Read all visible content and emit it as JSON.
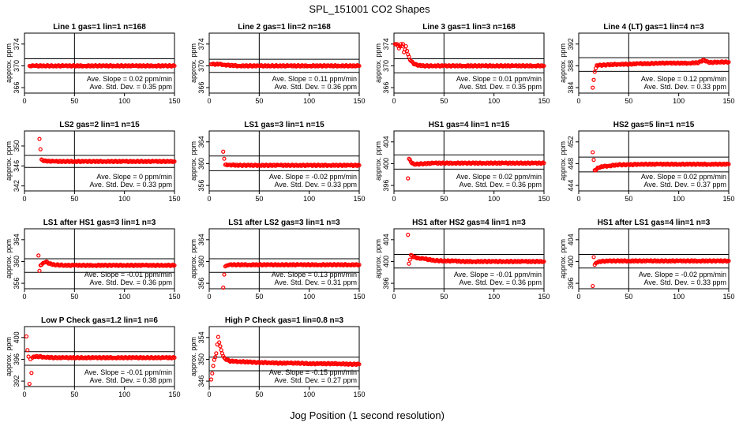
{
  "figure": {
    "title": "SPL_151001  CO2 Shapes",
    "xlabel": "Jog Position (1 second resolution)"
  },
  "chart_data": [
    {
      "type": "scatter",
      "title": "Line 1 gas=1 lin=1 n=168",
      "ylabel": "approx. ppm",
      "xlim": [
        0,
        150
      ],
      "ylim": [
        365,
        376
      ],
      "yticks": [
        366,
        370,
        374
      ],
      "xticks": [
        0,
        50,
        100,
        150
      ],
      "hlines": [
        371.3,
        368.7
      ],
      "vline": 50,
      "color": "#ff0000",
      "annotations": [
        "Ave. Slope = 0.02 ppm/min",
        "Ave. Std. Dev. = 0.35 ppm"
      ],
      "series": [
        {
          "x": [
            5,
            10,
            20,
            30,
            40,
            50,
            60,
            70,
            80,
            90,
            100,
            110,
            120,
            130,
            140,
            150
          ],
          "y": [
            370,
            370,
            370,
            370,
            370,
            370,
            370,
            370,
            370,
            370,
            370,
            370,
            370,
            370,
            370,
            370
          ]
        }
      ]
    },
    {
      "type": "scatter",
      "title": "Line 2 gas=1 lin=2 n=168",
      "ylabel": "approx. ppm",
      "xlim": [
        0,
        150
      ],
      "ylim": [
        365,
        376
      ],
      "yticks": [
        366,
        370,
        374
      ],
      "xticks": [
        0,
        50,
        100,
        150
      ],
      "hlines": [
        371.2,
        368.8
      ],
      "vline": 50,
      "color": "#ff0000",
      "annotations": [
        "Ave. Slope = 0.11 ppm/min",
        "Ave. Std. Dev. = 0.36 ppm"
      ],
      "series": [
        {
          "x": [
            2,
            5,
            10,
            15,
            20,
            30,
            40,
            50,
            60,
            70,
            80,
            90,
            100,
            110,
            120,
            130,
            140,
            150
          ],
          "y": [
            370.3,
            370.3,
            370.3,
            370.2,
            370.1,
            370,
            370,
            370,
            370,
            370,
            370,
            370,
            370,
            370,
            370,
            370,
            370,
            370
          ]
        }
      ]
    },
    {
      "type": "scatter",
      "title": "Line 3 gas=1 lin=3 n=168",
      "ylabel": "approx. ppm",
      "xlim": [
        0,
        150
      ],
      "ylim": [
        365,
        376
      ],
      "yticks": [
        366,
        370,
        374
      ],
      "xticks": [
        0,
        50,
        100,
        150
      ],
      "hlines": [
        371.3,
        368.7
      ],
      "vline": 50,
      "color": "#ff0000",
      "annotations": [
        "Ave. Slope = 0.01 ppm/min",
        "Ave. Std. Dev. = 0.35 ppm"
      ],
      "series": [
        {
          "x": [
            1,
            3,
            5,
            7,
            8,
            9,
            10,
            11,
            12,
            14,
            16,
            18,
            20,
            25,
            30,
            40,
            50,
            60,
            70,
            80,
            90,
            100,
            110,
            120,
            130,
            140,
            150
          ],
          "y": [
            374,
            374,
            373.2,
            374,
            373.6,
            374,
            372.5,
            373,
            373.6,
            372.1,
            371.1,
            370.8,
            370.3,
            370.1,
            370,
            370,
            370,
            370,
            370,
            370,
            370,
            370,
            370,
            370,
            370,
            370,
            370
          ]
        }
      ]
    },
    {
      "type": "scatter",
      "title": "Line 4 (LT) gas=1 lin=4 n=3",
      "ylabel": "approx. ppm",
      "xlim": [
        0,
        150
      ],
      "ylim": [
        383,
        394
      ],
      "yticks": [
        384,
        388,
        392
      ],
      "xticks": [
        0,
        50,
        100,
        150
      ],
      "hlines": [
        389.5,
        387
      ],
      "vline": 50,
      "color": "#ff0000",
      "annotations": [
        "Ave. Slope = 0.12 ppm/min",
        "Ave. Std. Dev. = 0.33 ppm"
      ],
      "series": [
        {
          "x": [
            14,
            16,
            18,
            20,
            30,
            40,
            50,
            60,
            70,
            80,
            90,
            100,
            110,
            120,
            125,
            130,
            140,
            150
          ],
          "y": [
            384,
            386.9,
            388.1,
            388.1,
            388.2,
            388.3,
            388.3,
            388.4,
            388.4,
            388.5,
            388.5,
            388.5,
            388.5,
            388.6,
            389.1,
            388.6,
            388.7,
            388.7
          ]
        }
      ]
    },
    {
      "type": "scatter",
      "title": "LS2 gas=2 lin=1 n=15",
      "ylabel": "approx. ppm",
      "xlim": [
        0,
        150
      ],
      "ylim": [
        341,
        353
      ],
      "yticks": [
        342,
        346,
        350
      ],
      "xticks": [
        0,
        50,
        100,
        150
      ],
      "hlines": [
        348.1,
        345.7
      ],
      "vline": 50,
      "color": "#ff0000",
      "annotations": [
        "Ave. Slope = 0 ppm/min",
        "Ave. Std. Dev. = 0.33 ppm"
      ],
      "series": [
        {
          "x": [
            15,
            17,
            20,
            30,
            40,
            50,
            60,
            70,
            80,
            90,
            100,
            110,
            120,
            130,
            140,
            150
          ],
          "y": [
            351.4,
            347.3,
            347,
            346.9,
            346.9,
            346.9,
            346.9,
            346.9,
            346.9,
            346.9,
            346.9,
            346.9,
            346.9,
            346.9,
            346.9,
            346.9
          ]
        }
      ]
    },
    {
      "type": "scatter",
      "title": "LS1 gas=3 lin=1 n=15",
      "ylabel": "approx. ppm",
      "xlim": [
        0,
        150
      ],
      "ylim": [
        355,
        366
      ],
      "yticks": [
        356,
        360,
        364
      ],
      "xticks": [
        0,
        50,
        100,
        150
      ],
      "hlines": [
        361.4,
        358.7
      ],
      "vline": 50,
      "color": "#ff0000",
      "annotations": [
        "Ave. Slope = -0.02 ppm/min",
        "Ave. Std. Dev. = 0.33 ppm"
      ],
      "series": [
        {
          "x": [
            14,
            16,
            20,
            30,
            40,
            50,
            60,
            70,
            80,
            90,
            100,
            110,
            120,
            130,
            140,
            150
          ],
          "y": [
            362.2,
            359.8,
            359.8,
            359.7,
            359.7,
            359.7,
            359.7,
            359.7,
            359.7,
            359.7,
            359.7,
            359.7,
            359.7,
            359.7,
            359.7,
            359.7
          ]
        }
      ]
    },
    {
      "type": "scatter",
      "title": "HS1 gas=4 lin=1 n=15",
      "ylabel": "approx. ppm",
      "xlim": [
        0,
        150
      ],
      "ylim": [
        395,
        406
      ],
      "yticks": [
        396,
        400,
        404
      ],
      "xticks": [
        0,
        50,
        100,
        150
      ],
      "hlines": [
        401.6,
        399
      ],
      "vline": 50,
      "color": "#ff0000",
      "annotations": [
        "Ave. Slope = 0.02 ppm/min",
        "Ave. Std. Dev. = 0.36 ppm"
      ],
      "series": [
        {
          "x": [
            14,
            15,
            17,
            20,
            30,
            40,
            50,
            60,
            70,
            80,
            90,
            100,
            110,
            120,
            130,
            140,
            150
          ],
          "y": [
            397.3,
            400.9,
            400.3,
            399.9,
            400,
            400.1,
            400.1,
            400.1,
            400.1,
            400.1,
            400.1,
            400.1,
            400.1,
            400.1,
            400.1,
            400.1,
            400.1
          ]
        }
      ]
    },
    {
      "type": "scatter",
      "title": "HS2 gas=5 lin=1 n=15",
      "ylabel": "approx. ppm",
      "xlim": [
        0,
        150
      ],
      "ylim": [
        443,
        454
      ],
      "yticks": [
        444,
        448,
        452
      ],
      "xticks": [
        0,
        50,
        100,
        150
      ],
      "hlines": [
        449.2,
        446.5
      ],
      "vline": 50,
      "color": "#ff0000",
      "annotations": [
        "Ave. Slope = 0.02 ppm/min",
        "Ave. Std. Dev. = 0.37 ppm"
      ],
      "series": [
        {
          "x": [
            14,
            15,
            16,
            18,
            20,
            25,
            30,
            40,
            50,
            60,
            70,
            80,
            90,
            100,
            110,
            120,
            130,
            140,
            150
          ],
          "y": [
            450.1,
            448.7,
            446.8,
            447,
            447.3,
            447.5,
            447.6,
            447.8,
            447.8,
            447.9,
            447.9,
            447.9,
            447.9,
            447.9,
            447.9,
            447.9,
            447.9,
            447.9,
            447.9
          ]
        }
      ]
    },
    {
      "type": "scatter",
      "title": "LS1 after HS1 gas=3 lin=1 n=3",
      "ylabel": "approx. ppm",
      "xlim": [
        0,
        150
      ],
      "ylim": [
        355,
        366
      ],
      "yticks": [
        356,
        360,
        364
      ],
      "xticks": [
        0,
        50,
        100,
        150
      ],
      "hlines": [
        360.5,
        358
      ],
      "vline": 50,
      "color": "#ff0000",
      "annotations": [
        "Ave. Slope = -0.01 ppm/min",
        "Ave. Std. Dev. = 0.36 ppm"
      ],
      "series": [
        {
          "x": [
            14,
            15,
            16,
            18,
            20,
            22,
            25,
            30,
            40,
            50,
            60,
            70,
            80,
            90,
            100,
            110,
            120,
            130,
            140,
            150
          ],
          "y": [
            361.1,
            358.3,
            359.3,
            359.6,
            359.8,
            360,
            359.6,
            359.4,
            359.3,
            359.3,
            359.3,
            359.3,
            359.3,
            359.3,
            359.3,
            359.3,
            359.3,
            359.3,
            359.3,
            359.3
          ]
        }
      ]
    },
    {
      "type": "scatter",
      "title": "LS1 after LS2 gas=3 lin=1 n=3",
      "ylabel": "approx. ppm",
      "xlim": [
        0,
        150
      ],
      "ylim": [
        355,
        366
      ],
      "yticks": [
        356,
        360,
        364
      ],
      "xticks": [
        0,
        50,
        100,
        150
      ],
      "hlines": [
        360.5,
        358
      ],
      "vline": 50,
      "color": "#ff0000",
      "annotations": [
        "Ave. Slope = 0.13 ppm/min",
        "Ave. Std. Dev. = 0.31 ppm"
      ],
      "series": [
        {
          "x": [
            14,
            15,
            16,
            18,
            20,
            30,
            40,
            50,
            60,
            70,
            80,
            90,
            100,
            110,
            120,
            130,
            140,
            150
          ],
          "y": [
            355.2,
            357.6,
            359.1,
            359.3,
            359.4,
            359.4,
            359.4,
            359.4,
            359.4,
            359.4,
            359.4,
            359.4,
            359.4,
            359.4,
            359.4,
            359.4,
            359.4,
            359.4
          ]
        }
      ]
    },
    {
      "type": "scatter",
      "title": "HS1 after HS2 gas=4 lin=1 n=3",
      "ylabel": "approx. ppm",
      "xlim": [
        0,
        150
      ],
      "ylim": [
        395,
        406
      ],
      "yticks": [
        396,
        400,
        404
      ],
      "xticks": [
        0,
        50,
        100,
        150
      ],
      "hlines": [
        401.3,
        398.8
      ],
      "vline": 50,
      "color": "#ff0000",
      "annotations": [
        "Ave. Slope = -0.01 ppm/min",
        "Ave. Std. Dev. = 0.36 ppm"
      ],
      "series": [
        {
          "x": [
            14,
            15,
            17,
            20,
            25,
            30,
            40,
            50,
            60,
            70,
            80,
            90,
            100,
            110,
            120,
            130,
            140,
            150
          ],
          "y": [
            404.9,
            399.6,
            401.2,
            400.8,
            400.6,
            400.5,
            400.2,
            400.1,
            400.1,
            400,
            400,
            400,
            400,
            400,
            400,
            400,
            400,
            400
          ]
        }
      ]
    },
    {
      "type": "scatter",
      "title": "HS1 after LS1 gas=4 lin=1 n=3",
      "ylabel": "approx. ppm",
      "xlim": [
        0,
        150
      ],
      "ylim": [
        395,
        406
      ],
      "yticks": [
        396,
        400,
        404
      ],
      "xticks": [
        0,
        50,
        100,
        150
      ],
      "hlines": [
        401.3,
        398.8
      ],
      "vline": 50,
      "color": "#ff0000",
      "annotations": [
        "Ave. Slope = -0.02 ppm/min",
        "Ave. Std. Dev. = 0.33 ppm"
      ],
      "series": [
        {
          "x": [
            14,
            15,
            16,
            18,
            20,
            30,
            40,
            50,
            60,
            70,
            80,
            90,
            100,
            110,
            120,
            130,
            140,
            150
          ],
          "y": [
            395.5,
            400.8,
            399.4,
            399.8,
            400,
            400.1,
            400.1,
            400.1,
            400.1,
            400.1,
            400.1,
            400.1,
            400.1,
            400.1,
            400.1,
            400.1,
            400.1,
            400.1
          ]
        }
      ]
    },
    {
      "type": "scatter",
      "title": "Low P Check gas=1.2 lin=1 n=6",
      "ylabel": "approx. ppm",
      "xlim": [
        0,
        150
      ],
      "ylim": [
        391,
        402
      ],
      "yticks": [
        392,
        396,
        400
      ],
      "xticks": [
        0,
        50,
        100,
        150
      ],
      "hlines": [
        397.4,
        394.9
      ],
      "vline": 50,
      "color": "#ff0000",
      "annotations": [
        "Ave. Slope = -0.01 ppm/min",
        "Ave. Std. Dev. = 0.38 ppm"
      ],
      "series": [
        {
          "x": [
            2,
            3,
            4,
            5,
            6,
            7,
            8,
            10,
            15,
            20,
            30,
            40,
            50,
            60,
            70,
            80,
            90,
            100,
            110,
            120,
            130,
            140,
            150
          ],
          "y": [
            400.2,
            397.7,
            396.5,
            391.5,
            396,
            393.5,
            396.3,
            396.5,
            396.5,
            396.4,
            396.3,
            396.3,
            396.3,
            396.3,
            396.3,
            396.3,
            396.3,
            396.3,
            396.3,
            396.3,
            396.3,
            396.3,
            396.3
          ]
        }
      ]
    },
    {
      "type": "scatter",
      "title": "High P Check gas=1 lin=0.8 n=3",
      "ylabel": "approx. ppm",
      "xlim": [
        0,
        150
      ],
      "ylim": [
        345,
        356
      ],
      "yticks": [
        346,
        350,
        354
      ],
      "xticks": [
        0,
        50,
        100,
        150
      ],
      "hlines": [
        350.4,
        347.9
      ],
      "vline": 50,
      "color": "#ff0000",
      "annotations": [
        "Ave. Slope = -0.15 ppm/min",
        "Ave. Std. Dev. = 0.27 ppm"
      ],
      "series": [
        {
          "x": [
            2,
            5,
            7,
            9,
            10,
            11,
            12,
            13,
            14,
            15,
            16,
            18,
            20,
            25,
            30,
            40,
            50,
            60,
            70,
            80,
            90,
            100,
            110,
            120,
            130,
            140,
            150
          ],
          "y": [
            346.3,
            349.9,
            351.1,
            354.1,
            353.1,
            352.4,
            351.7,
            351.1,
            350.6,
            350.3,
            350.1,
            349.9,
            349.7,
            349.6,
            349.6,
            349.5,
            349.4,
            349.4,
            349.3,
            349.3,
            349.3,
            349.2,
            349.2,
            349.2,
            349.2,
            349.1,
            349.1
          ]
        }
      ]
    }
  ]
}
